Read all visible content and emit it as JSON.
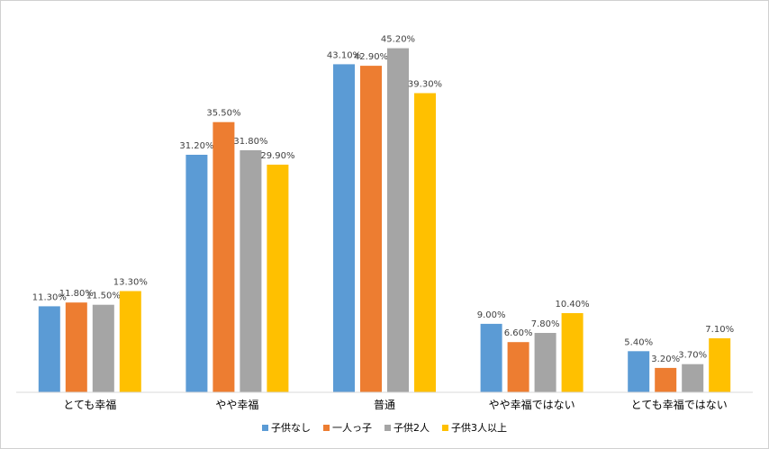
{
  "chart_data": {
    "type": "bar",
    "title": "",
    "xlabel": "",
    "ylabel": "",
    "ylim": [
      0,
      50
    ],
    "grid": false,
    "legend": "bottom",
    "categories": [
      "とても幸福",
      "やや幸福",
      "普通",
      "やや幸福ではない",
      "とても幸福ではない"
    ],
    "series": [
      {
        "name": "子供なし",
        "color": "#5B9BD5",
        "values": [
          11.3,
          31.2,
          43.1,
          9.0,
          5.4
        ],
        "labels": [
          "11.30%",
          "31.20%",
          "43.10%",
          "9.00%",
          "5.40%"
        ]
      },
      {
        "name": "一人っ子",
        "color": "#ED7D31",
        "values": [
          11.8,
          35.5,
          42.9,
          6.6,
          3.2
        ],
        "labels": [
          "11.80%",
          "35.50%",
          "42.90%",
          "6.60%",
          "3.20%"
        ]
      },
      {
        "name": "子供2人",
        "color": "#A5A5A5",
        "values": [
          11.5,
          31.8,
          45.2,
          7.8,
          3.7
        ],
        "labels": [
          "11.50%",
          "31.80%",
          "45.20%",
          "7.80%",
          "3.70%"
        ]
      },
      {
        "name": "子供3人以上",
        "color": "#FFC000",
        "values": [
          13.3,
          29.9,
          39.3,
          10.4,
          7.1
        ],
        "labels": [
          "13.30%",
          "29.90%",
          "39.30%",
          "10.40%",
          "7.10%"
        ]
      }
    ]
  }
}
